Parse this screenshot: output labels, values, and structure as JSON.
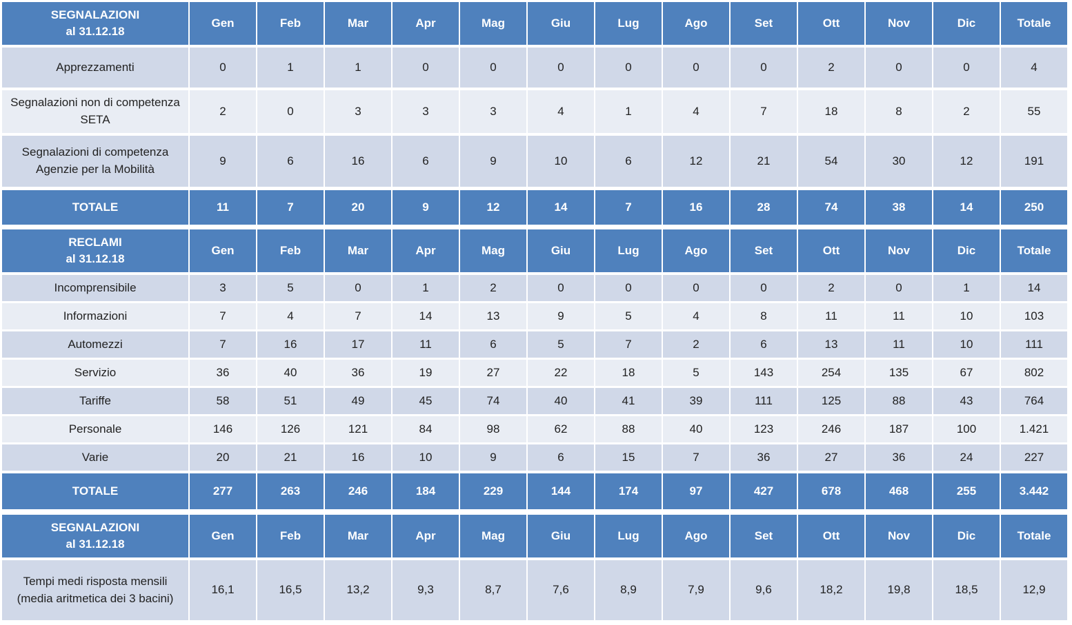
{
  "tables": [
    {
      "header": [
        "SEGNALAZIONI\nal 31.12.18",
        "Gen",
        "Feb",
        "Mar",
        "Apr",
        "Mag",
        "Giu",
        "Lug",
        "Ago",
        "Set",
        "Ott",
        "Nov",
        "Dic",
        "Totale"
      ],
      "rows": [
        [
          "Apprezzamenti",
          "0",
          "1",
          "1",
          "0",
          "0",
          "0",
          "0",
          "0",
          "0",
          "2",
          "0",
          "0",
          "4"
        ],
        [
          "Segnalazioni non di competenza SETA",
          "2",
          "0",
          "3",
          "3",
          "3",
          "4",
          "1",
          "4",
          "7",
          "18",
          "8",
          "2",
          "55"
        ],
        [
          "Segnalazioni di competenza Agenzie per la Mobilità",
          "9",
          "6",
          "16",
          "6",
          "9",
          "10",
          "6",
          "12",
          "21",
          "54",
          "30",
          "12",
          "191"
        ]
      ],
      "total": [
        "TOTALE",
        "11",
        "7",
        "20",
        "9",
        "12",
        "14",
        "7",
        "16",
        "28",
        "74",
        "38",
        "14",
        "250"
      ]
    },
    {
      "header": [
        "RECLAMI\nal 31.12.18",
        "Gen",
        "Feb",
        "Mar",
        "Apr",
        "Mag",
        "Giu",
        "Lug",
        "Ago",
        "Set",
        "Ott",
        "Nov",
        "Dic",
        "Totale"
      ],
      "rows": [
        [
          "Incomprensibile",
          "3",
          "5",
          "0",
          "1",
          "2",
          "0",
          "0",
          "0",
          "0",
          "2",
          "0",
          "1",
          "14"
        ],
        [
          "Informazioni",
          "7",
          "4",
          "7",
          "14",
          "13",
          "9",
          "5",
          "4",
          "8",
          "11",
          "11",
          "10",
          "103"
        ],
        [
          "Automezzi",
          "7",
          "16",
          "17",
          "11",
          "6",
          "5",
          "7",
          "2",
          "6",
          "13",
          "11",
          "10",
          "111"
        ],
        [
          "Servizio",
          "36",
          "40",
          "36",
          "19",
          "27",
          "22",
          "18",
          "5",
          "143",
          "254",
          "135",
          "67",
          "802"
        ],
        [
          "Tariffe",
          "58",
          "51",
          "49",
          "45",
          "74",
          "40",
          "41",
          "39",
          "111",
          "125",
          "88",
          "43",
          "764"
        ],
        [
          "Personale",
          "146",
          "126",
          "121",
          "84",
          "98",
          "62",
          "88",
          "40",
          "123",
          "246",
          "187",
          "100",
          "1.421"
        ],
        [
          "Varie",
          "20",
          "21",
          "16",
          "10",
          "9",
          "6",
          "15",
          "7",
          "36",
          "27",
          "36",
          "24",
          "227"
        ]
      ],
      "total": [
        "TOTALE",
        "277",
        "263",
        "246",
        "184",
        "229",
        "144",
        "174",
        "97",
        "427",
        "678",
        "468",
        "255",
        "3.442"
      ]
    },
    {
      "header": [
        "SEGNALAZIONI\nal 31.12.18",
        "Gen",
        "Feb",
        "Mar",
        "Apr",
        "Mag",
        "Giu",
        "Lug",
        "Ago",
        "Set",
        "Ott",
        "Nov",
        "Dic",
        "Totale"
      ],
      "rows": [
        [
          "Tempi medi risposta mensili (media aritmetica dei 3 bacini)",
          "16,1",
          "16,5",
          "13,2",
          "9,3",
          "8,7",
          "7,6",
          "8,9",
          "7,9",
          "9,6",
          "18,2",
          "19,8",
          "18,5",
          "12,9"
        ]
      ]
    }
  ]
}
